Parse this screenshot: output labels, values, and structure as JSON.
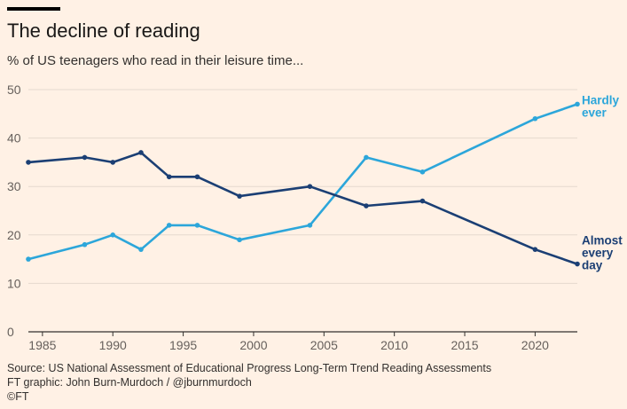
{
  "title": "The decline of reading",
  "subtitle": "% of US teenagers who read in their leisure time...",
  "source": "Source: US National Assessment of Educational Progress Long-Term Trend Reading Assessments",
  "credit": "FT graphic: John Burn-Murdoch / @jburnmurdoch",
  "copyright": "©FT",
  "colors": {
    "background": "#FFF1E5",
    "hardly_ever": "#2CA6DA",
    "almost_every_day": "#1B3F74",
    "grid": "#E6D9CE",
    "axis": "#33302E"
  },
  "chart_data": {
    "type": "line",
    "xlim": [
      1984,
      2023
    ],
    "ylim": [
      0,
      50
    ],
    "xticks": [
      1985,
      1990,
      1995,
      2000,
      2005,
      2010,
      2015,
      2020
    ],
    "yticks": [
      0,
      10,
      20,
      30,
      40,
      50
    ],
    "grid": "horizontal",
    "series": [
      {
        "name": "Hardly ever",
        "label_lines": [
          "Hardly",
          "ever"
        ],
        "color": "#2CA6DA",
        "x": [
          1984,
          1988,
          1990,
          1992,
          1994,
          1996,
          1999,
          2004,
          2008,
          2012,
          2020,
          2023
        ],
        "values": [
          15,
          18,
          20,
          17,
          22,
          22,
          19,
          22,
          36,
          33,
          44,
          47
        ]
      },
      {
        "name": "Almost every day",
        "label_lines": [
          "Almost",
          "every",
          "day"
        ],
        "color": "#1B3F74",
        "x": [
          1984,
          1988,
          1990,
          1992,
          1994,
          1996,
          1999,
          2004,
          2008,
          2012,
          2020,
          2023
        ],
        "values": [
          35,
          36,
          35,
          37,
          32,
          32,
          28,
          30,
          26,
          27,
          17,
          14
        ]
      }
    ]
  }
}
